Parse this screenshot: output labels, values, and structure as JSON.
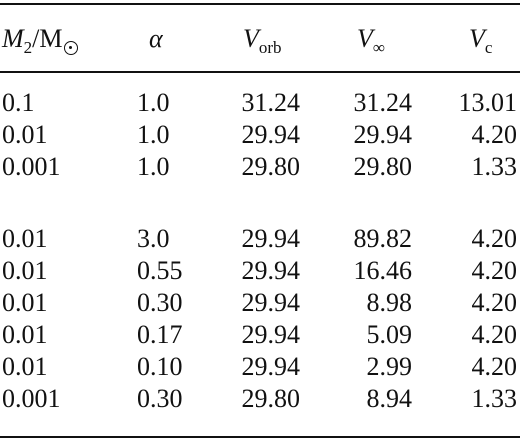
{
  "header": {
    "col1_var": "M",
    "col1_sub": "2",
    "col1_unit": "/M",
    "col2": "α",
    "col3_var": "V",
    "col3_sub": "orb",
    "col4_var": "V",
    "col4_sub": "∞",
    "col5_var": "V",
    "col5_sub": "c"
  },
  "rows": [
    {
      "m2": "0.1",
      "alpha": "1.0",
      "vorb": "31.24",
      "vinf": "31.24",
      "vc": "13.01"
    },
    {
      "m2": "0.01",
      "alpha": "1.0",
      "vorb": "29.94",
      "vinf": "29.94",
      "vc": "4.20"
    },
    {
      "m2": "0.001",
      "alpha": "1.0",
      "vorb": "29.80",
      "vinf": "29.80",
      "vc": "1.33"
    },
    {
      "m2": "0.01",
      "alpha": "3.0",
      "vorb": "29.94",
      "vinf": "89.82",
      "vc": "4.20"
    },
    {
      "m2": "0.01",
      "alpha": "0.55",
      "vorb": "29.94",
      "vinf": "16.46",
      "vc": "4.20"
    },
    {
      "m2": "0.01",
      "alpha": "0.30",
      "vorb": "29.94",
      "vinf": "8.98",
      "vc": "4.20"
    },
    {
      "m2": "0.01",
      "alpha": "0.17",
      "vorb": "29.94",
      "vinf": "5.09",
      "vc": "4.20"
    },
    {
      "m2": "0.01",
      "alpha": "0.10",
      "vorb": "29.94",
      "vinf": "2.99",
      "vc": "4.20"
    },
    {
      "m2": "0.001",
      "alpha": "0.30",
      "vorb": "29.80",
      "vinf": "8.94",
      "vc": "1.33"
    }
  ]
}
